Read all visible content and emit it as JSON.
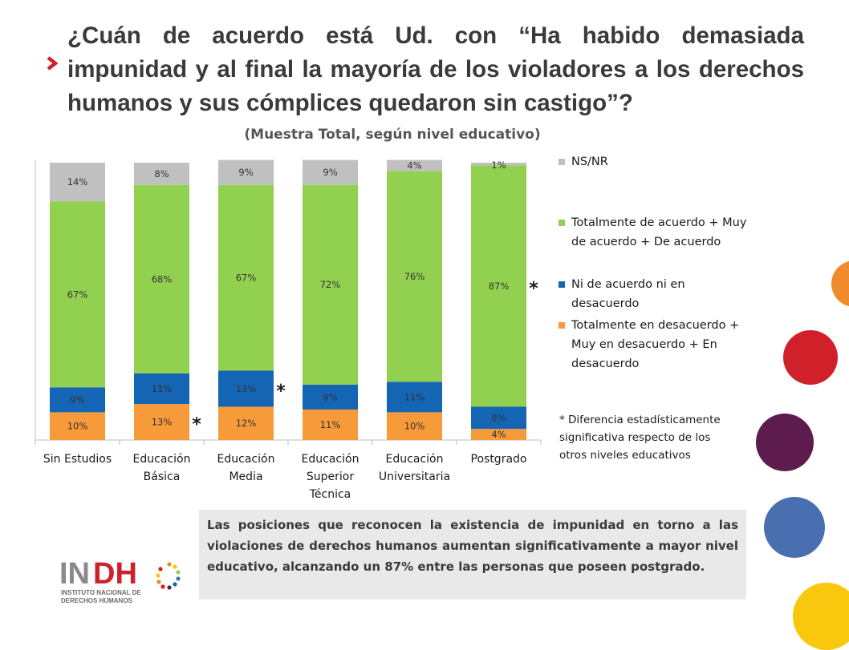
{
  "title": "¿Cuán de acuerdo está Ud. con “Ha habido demasiada impunidad y al final la mayoría de los violadores a los derechos humanos y sus cómplices quedaron sin castigo”?",
  "subtitle": "(Muestra Total, según nivel educativo)",
  "chart_data": {
    "type": "bar",
    "stacked": true,
    "categories": [
      "Sin Estudios",
      "Educación Básica",
      "Educación Media",
      "Educación Superior Técnica",
      "Educación Universitaria",
      "Postgrado"
    ],
    "category_lines": [
      [
        "Sin Estudios"
      ],
      [
        "Educación",
        "Básica"
      ],
      [
        "Educación",
        "Media"
      ],
      [
        "Educación",
        "Superior",
        "Técnica"
      ],
      [
        "Educación",
        "Universitaria"
      ],
      [
        "Postgrado"
      ]
    ],
    "series": [
      {
        "name": "Totalmente en desacuerdo + Muy en desacuerdo + En desacuerdo",
        "color": "#f79a3a",
        "values": [
          10,
          13,
          12,
          11,
          10,
          4
        ],
        "labels": [
          "10%",
          "13%",
          "12%",
          "11%",
          "10%",
          "4%"
        ]
      },
      {
        "name": "Ni de acuerdo ni en desacuerdo",
        "color": "#1565b5",
        "values": [
          9,
          11,
          13,
          9,
          11,
          8
        ],
        "labels": [
          "9%",
          "11%",
          "13%",
          "9%",
          "11%",
          "8%"
        ]
      },
      {
        "name": "Totalmente de acuerdo + Muy de acuerdo + De acuerdo",
        "color": "#92d050",
        "values": [
          67,
          68,
          67,
          72,
          76,
          87
        ],
        "labels": [
          "67%",
          "68%",
          "67%",
          "72%",
          "76%",
          "87%"
        ]
      },
      {
        "name": "NS/NR",
        "color": "#c0c0c0",
        "values": [
          14,
          8,
          9,
          9,
          4,
          1
        ],
        "labels": [
          "14%",
          "8%",
          "9%",
          "9%",
          "4%",
          "1%"
        ]
      }
    ],
    "significance_markers": [
      {
        "category": "Educación Básica",
        "series": "Totalmente en desacuerdo + Muy en desacuerdo + En desacuerdo",
        "symbol": "*"
      },
      {
        "category": "Educación Media",
        "series": "Ni de acuerdo ni en desacuerdo",
        "symbol": "*"
      },
      {
        "category": "Postgrado",
        "series": "Totalmente de acuerdo + Muy de acuerdo + De acuerdo",
        "symbol": "*"
      }
    ],
    "ylim": [
      0,
      100
    ],
    "grid": false,
    "legend_position": "right"
  },
  "legend": {
    "items": [
      {
        "label": "NS/NR",
        "color": "#c0c0c0"
      },
      {
        "label": "Totalmente de acuerdo + Muy\nde acuerdo + De acuerdo",
        "color": "#92d050"
      },
      {
        "label": "Ni de acuerdo ni en\ndesacuerdo",
        "color": "#1565b5"
      },
      {
        "label": "Totalmente en desacuerdo +\nMuy en desacuerdo + En\ndesacuerdo",
        "color": "#f79a3a"
      }
    ]
  },
  "footnote": "* Diferencia estadísticamente\nsignificativa respecto de los\notros niveles educativos",
  "summary": "Las posiciones que reconocen la existencia de impunidad en torno a las violaciones de derechos humanos aumentan significativamente a mayor nivel educativo, alcanzando un 87% entre las personas que poseen postgrado.",
  "logo": {
    "letters_in": "IN",
    "letters_dh": "DH",
    "line1": "INSTITUTO NACIONAL DE",
    "line2": "DERECHOS HUMANOS"
  },
  "colors": {
    "accent_red": "#d0202a",
    "decor_orange": "#f08a2c",
    "decor_red": "#d0202a",
    "decor_purple": "#5e1b4e",
    "decor_blue": "#4a6fb0",
    "decor_yellow": "#f9c80e"
  }
}
